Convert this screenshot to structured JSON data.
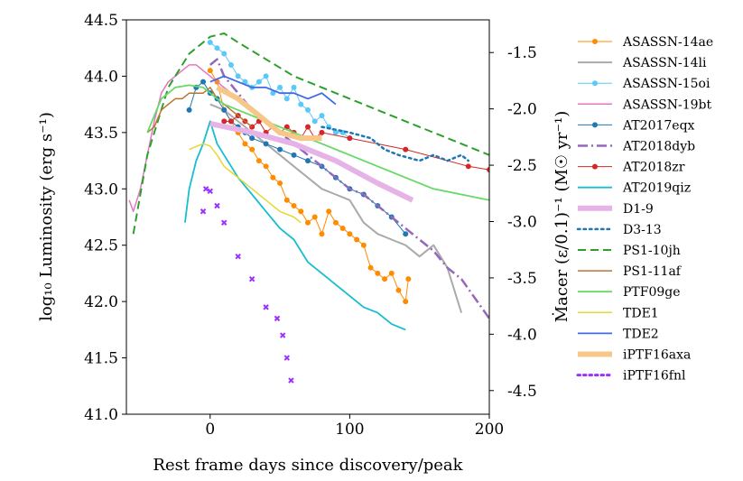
{
  "chart_data": {
    "type": "line",
    "xlabel": "Rest frame days since discovery/peak",
    "ylabel_left": "log₁₀ Luminosity (erg s⁻¹)",
    "ylabel_right": "Ṁacer (ε/0.1)⁻¹ (M☉ yr⁻¹)",
    "xlim": [
      -60,
      200
    ],
    "ylim_left": [
      41.0,
      44.5
    ],
    "ylim_right": [
      -4.71,
      -1.21
    ],
    "x_ticks": [
      0,
      100,
      200
    ],
    "x_tick_labels": [
      "0",
      "100",
      "200"
    ],
    "y_ticks_left": [
      41.0,
      41.5,
      42.0,
      42.5,
      43.0,
      43.5,
      44.0,
      44.5
    ],
    "y_tick_labels_left": [
      "41.0",
      "41.5",
      "42.0",
      "42.5",
      "43.0",
      "43.5",
      "44.0",
      "44.5"
    ],
    "y_ticks_right": [
      -1.5,
      -2.0,
      -2.5,
      -3.0,
      -3.5,
      -4.0,
      -4.5
    ],
    "y_tick_labels_right": [
      "-1.5",
      "-2.0",
      "-2.5",
      "-3.0",
      "-3.5",
      "-4.0",
      "-4.5"
    ],
    "legend_position": "outside-right",
    "series": [
      {
        "name": "ASASSN-14ae",
        "color": "#ff8c00",
        "style": "solid",
        "width": 1,
        "marker": "circle",
        "x": [
          0,
          5,
          10,
          15,
          20,
          25,
          30,
          35,
          40,
          45,
          50,
          55,
          60,
          65,
          70,
          75,
          80,
          85,
          90,
          95,
          100,
          105,
          110,
          115,
          120,
          125,
          130,
          135,
          140,
          142
        ],
        "y": [
          44.05,
          43.95,
          43.7,
          43.6,
          43.5,
          43.4,
          43.35,
          43.25,
          43.2,
          43.1,
          43.05,
          42.9,
          42.85,
          42.8,
          42.7,
          42.75,
          42.6,
          42.8,
          42.7,
          42.65,
          42.6,
          42.55,
          42.5,
          42.3,
          42.25,
          42.2,
          42.25,
          42.1,
          42.0,
          42.2
        ]
      },
      {
        "name": "ASASSN-14li",
        "color": "#aaaaaa",
        "style": "solid",
        "width": 2,
        "marker": "none",
        "x": [
          0,
          10,
          20,
          30,
          40,
          50,
          60,
          70,
          80,
          90,
          100,
          110,
          120,
          130,
          140,
          150,
          160,
          165,
          170,
          175,
          180
        ],
        "y": [
          43.75,
          43.7,
          43.6,
          43.5,
          43.4,
          43.3,
          43.2,
          43.1,
          43.0,
          42.95,
          42.9,
          42.7,
          42.6,
          42.55,
          42.5,
          42.4,
          42.5,
          42.4,
          42.3,
          42.1,
          41.9
        ]
      },
      {
        "name": "ASASSN-15oi",
        "color": "#5bc8fa",
        "style": "solid",
        "width": 1,
        "marker": "circle",
        "x": [
          0,
          5,
          10,
          15,
          20,
          25,
          30,
          35,
          40,
          45,
          50,
          55,
          60,
          65,
          70,
          75,
          80,
          85,
          90,
          95,
          100
        ],
        "y": [
          44.3,
          44.25,
          44.2,
          44.1,
          44.0,
          43.95,
          43.9,
          43.95,
          44.0,
          43.85,
          43.9,
          43.8,
          43.9,
          43.75,
          43.7,
          43.6,
          43.65,
          43.55,
          43.5,
          43.5,
          43.45
        ]
      },
      {
        "name": "ASASSN-19bt",
        "color": "#e377c2",
        "style": "solid",
        "width": 1.5,
        "marker": "none",
        "x": [
          -58,
          -55,
          -50,
          -45,
          -40,
          -35,
          -30,
          -25,
          -20,
          -15,
          -10,
          -5,
          0,
          5,
          10,
          15,
          20
        ],
        "y": [
          42.9,
          42.8,
          43.0,
          43.3,
          43.6,
          43.85,
          43.95,
          44.0,
          44.05,
          44.1,
          44.1,
          44.05,
          44.0,
          43.95,
          43.9,
          43.85,
          43.8
        ]
      },
      {
        "name": "AT2017eqx",
        "color": "#1f77b4",
        "style": "solid",
        "width": 1,
        "marker": "circle",
        "x": [
          -15,
          -10,
          -5,
          0,
          5,
          10,
          15,
          20,
          25,
          30,
          40,
          50,
          60,
          70,
          80,
          90,
          100,
          110,
          120,
          130,
          140
        ],
        "y": [
          43.7,
          43.9,
          43.95,
          43.85,
          43.8,
          43.7,
          43.6,
          43.55,
          43.5,
          43.45,
          43.4,
          43.35,
          43.3,
          43.25,
          43.2,
          43.1,
          43.0,
          42.95,
          42.85,
          42.75,
          42.6
        ]
      },
      {
        "name": "AT2018dyb",
        "color": "#9467bd",
        "style": "dashdot",
        "width": 2.5,
        "marker": "none",
        "x": [
          0,
          5,
          10,
          20,
          30,
          40,
          50,
          60,
          70,
          80,
          90,
          100,
          110,
          120,
          130,
          140,
          150,
          160,
          170,
          180,
          200
        ],
        "y": [
          44.1,
          44.15,
          44.0,
          43.85,
          43.7,
          43.6,
          43.5,
          43.4,
          43.3,
          43.2,
          43.1,
          43.0,
          42.95,
          42.85,
          42.75,
          42.65,
          42.55,
          42.45,
          42.3,
          42.2,
          41.85
        ]
      },
      {
        "name": "AT2018zr",
        "color": "#d62728",
        "style": "solid",
        "width": 1,
        "marker": "circle",
        "x": [
          10,
          15,
          20,
          25,
          30,
          35,
          40,
          45,
          50,
          55,
          60,
          65,
          70,
          75,
          80,
          100,
          140,
          185,
          200
        ],
        "y": [
          43.6,
          43.6,
          43.65,
          43.6,
          43.55,
          43.6,
          43.5,
          43.55,
          43.5,
          43.55,
          43.5,
          43.45,
          43.55,
          43.45,
          43.5,
          43.45,
          43.35,
          43.2,
          43.17
        ]
      },
      {
        "name": "AT2019qiz",
        "color": "#17becf",
        "style": "solid",
        "width": 1.8,
        "marker": "none",
        "x": [
          -18,
          -15,
          -10,
          -5,
          0,
          5,
          10,
          15,
          20,
          30,
          40,
          50,
          60,
          70,
          80,
          90,
          100,
          110,
          120,
          130,
          140
        ],
        "y": [
          42.7,
          43.0,
          43.25,
          43.4,
          43.6,
          43.4,
          43.3,
          43.2,
          43.1,
          42.95,
          42.8,
          42.65,
          42.55,
          42.35,
          42.25,
          42.15,
          42.05,
          41.95,
          41.9,
          41.8,
          41.75
        ]
      },
      {
        "name": "D1-9",
        "color": "#e6b3e6",
        "style": "solid",
        "width": 6,
        "marker": "none",
        "x": [
          0,
          30,
          60,
          90,
          120,
          145
        ],
        "y": [
          43.58,
          43.5,
          43.4,
          43.25,
          43.05,
          42.9
        ]
      },
      {
        "name": "D3-13",
        "color": "#1f77b4",
        "style": "dotted",
        "width": 2.5,
        "marker": "none",
        "x": [
          80,
          100,
          115,
          125,
          135,
          150,
          160,
          170,
          180,
          185
        ],
        "y": [
          43.55,
          43.5,
          43.45,
          43.35,
          43.3,
          43.25,
          43.3,
          43.25,
          43.3,
          43.25
        ]
      },
      {
        "name": "PS1-10jh",
        "color": "#2ca02c",
        "style": "dashed",
        "width": 2,
        "marker": "none",
        "x": [
          -55,
          -45,
          -30,
          -15,
          0,
          10,
          20,
          40,
          60,
          80,
          100,
          120,
          140,
          160,
          180,
          200
        ],
        "y": [
          42.6,
          43.3,
          43.9,
          44.2,
          44.35,
          44.38,
          44.3,
          44.15,
          44.0,
          43.9,
          43.8,
          43.7,
          43.6,
          43.5,
          43.4,
          43.3
        ]
      },
      {
        "name": "PS1-11af",
        "color": "#b87333",
        "style": "solid",
        "width": 1.5,
        "marker": "none",
        "x": [
          -45,
          -40,
          -35,
          -30,
          -25,
          -20,
          -15,
          -10,
          -5,
          0,
          5,
          10,
          15,
          20,
          25,
          30
        ],
        "y": [
          43.5,
          43.55,
          43.7,
          43.75,
          43.8,
          43.8,
          43.85,
          43.85,
          43.85,
          43.9,
          43.8,
          43.75,
          43.7,
          43.65,
          43.6,
          43.55
        ]
      },
      {
        "name": "PTF09ge",
        "color": "#66d966",
        "style": "solid",
        "width": 1.8,
        "marker": "none",
        "x": [
          -45,
          -35,
          -25,
          -15,
          -5,
          0,
          10,
          20,
          40,
          60,
          80,
          100,
          120,
          140,
          160,
          180,
          200
        ],
        "y": [
          43.5,
          43.8,
          43.9,
          43.92,
          43.9,
          43.85,
          43.75,
          43.7,
          43.6,
          43.5,
          43.4,
          43.3,
          43.2,
          43.1,
          43.0,
          42.95,
          42.9
        ]
      },
      {
        "name": "TDE1",
        "color": "#e6d833",
        "style": "solid",
        "width": 1.5,
        "marker": "none",
        "x": [
          -15,
          -5,
          0,
          5,
          10,
          20,
          30,
          40,
          50,
          60,
          65
        ],
        "y": [
          43.35,
          43.4,
          43.38,
          43.3,
          43.2,
          43.1,
          43.0,
          42.9,
          42.8,
          42.75,
          42.7
        ]
      },
      {
        "name": "TDE2",
        "color": "#4169e1",
        "style": "solid",
        "width": 1.8,
        "marker": "none",
        "x": [
          0,
          10,
          20,
          30,
          40,
          50,
          60,
          70,
          80,
          90
        ],
        "y": [
          43.95,
          44.0,
          43.95,
          43.9,
          43.9,
          43.85,
          43.85,
          43.8,
          43.85,
          43.75
        ]
      },
      {
        "name": "iPTF16axa",
        "color": "#f5c88a",
        "style": "solid",
        "width": 6,
        "marker": "none",
        "x": [
          5,
          20,
          35,
          50,
          65,
          80
        ],
        "y": [
          43.9,
          43.8,
          43.65,
          43.5,
          43.45,
          43.45
        ]
      },
      {
        "name": "iPTF16fnl",
        "color": "#9b30ff",
        "style": "dotted",
        "width": 3,
        "marker": "x",
        "x": [
          -5,
          -3,
          0,
          5,
          10,
          20,
          30,
          40,
          48,
          52,
          55,
          58
        ],
        "y": [
          42.8,
          43.0,
          42.98,
          42.85,
          42.7,
          42.4,
          42.2,
          41.95,
          41.85,
          41.7,
          41.5,
          41.3
        ]
      }
    ]
  }
}
